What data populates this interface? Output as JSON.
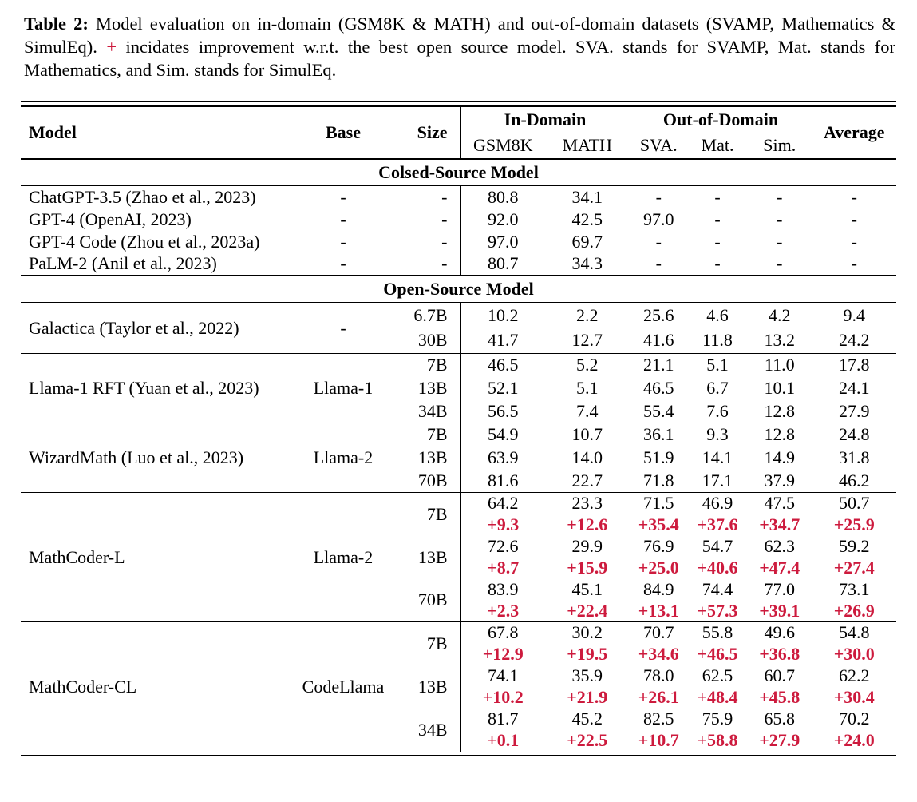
{
  "caption": {
    "label": "Table 2:",
    "body_1": " Model evaluation on in-domain (GSM8K & MATH) and out-of-domain datasets (SVAMP, Mathematics & SimulEq). ",
    "plus": "+",
    "body_2": " incidates improvement w.r.t. the best open source model. SVA. stands for SVAMP, Mat. stands for Mathematics, and Sim. stands for SimulEq."
  },
  "colors": {
    "improvement": "#cd1a3d",
    "text": "#000000",
    "background": "#ffffff"
  },
  "table": {
    "header": {
      "model": "Model",
      "base": "Base",
      "size": "Size",
      "in_domain": "In-Domain",
      "out_of_domain": "Out-of-Domain",
      "average": "Average",
      "sub_columns": [
        "GSM8K",
        "MATH",
        "SVA.",
        "Mat.",
        "Sim."
      ]
    },
    "sections": [
      {
        "title": "Colsed-Source Model",
        "blocks": [
          {
            "rows": [
              {
                "model": "ChatGPT-3.5 (Zhao et al., 2023)",
                "base": "-",
                "size": "-",
                "values": [
                  "80.8",
                  "34.1",
                  "-",
                  "-",
                  "-",
                  "-"
                ]
              },
              {
                "model": "GPT-4 (OpenAI, 2023)",
                "base": "-",
                "size": "-",
                "values": [
                  "92.0",
                  "42.5",
                  "97.0",
                  "-",
                  "-",
                  "-"
                ]
              },
              {
                "model": "GPT-4 Code (Zhou et al., 2023a)",
                "base": "-",
                "size": "-",
                "values": [
                  "97.0",
                  "69.7",
                  "-",
                  "-",
                  "-",
                  "-"
                ]
              },
              {
                "model": "PaLM-2 (Anil et al., 2023)",
                "base": "-",
                "size": "-",
                "values": [
                  "80.7",
                  "34.3",
                  "-",
                  "-",
                  "-",
                  "-"
                ]
              }
            ]
          }
        ]
      },
      {
        "title": "Open-Source Model",
        "blocks": [
          {
            "model": "Galactica (Taylor et al., 2022)",
            "base": "-",
            "rows": [
              {
                "size": "6.7B",
                "values": [
                  "10.2",
                  "2.2",
                  "25.6",
                  "4.6",
                  "4.2",
                  "9.4"
                ]
              },
              {
                "size": "30B",
                "values": [
                  "41.7",
                  "12.7",
                  "41.6",
                  "11.8",
                  "13.2",
                  "24.2"
                ]
              }
            ]
          },
          {
            "model": "Llama-1 RFT (Yuan et al., 2023)",
            "base": "Llama-1",
            "rows": [
              {
                "size": "7B",
                "values": [
                  "46.5",
                  "5.2",
                  "21.1",
                  "5.1",
                  "11.0",
                  "17.8"
                ]
              },
              {
                "size": "13B",
                "values": [
                  "52.1",
                  "5.1",
                  "46.5",
                  "6.7",
                  "10.1",
                  "24.1"
                ]
              },
              {
                "size": "34B",
                "values": [
                  "56.5",
                  "7.4",
                  "55.4",
                  "7.6",
                  "12.8",
                  "27.9"
                ]
              }
            ]
          },
          {
            "model": "WizardMath (Luo et al., 2023)",
            "base": "Llama-2",
            "rows": [
              {
                "size": "7B",
                "values": [
                  "54.9",
                  "10.7",
                  "36.1",
                  "9.3",
                  "12.8",
                  "24.8"
                ]
              },
              {
                "size": "13B",
                "values": [
                  "63.9",
                  "14.0",
                  "51.9",
                  "14.1",
                  "14.9",
                  "31.8"
                ]
              },
              {
                "size": "70B",
                "values": [
                  "81.6",
                  "22.7",
                  "71.8",
                  "17.1",
                  "37.9",
                  "46.2"
                ]
              }
            ]
          },
          {
            "model": "MathCoder-L",
            "base": "Llama-2",
            "rows": [
              {
                "size": "7B",
                "values": [
                  "64.2",
                  "23.3",
                  "71.5",
                  "46.9",
                  "47.5",
                  "50.7"
                ],
                "deltas": [
                  "+9.3",
                  "+12.6",
                  "+35.4",
                  "+37.6",
                  "+34.7",
                  "+25.9"
                ]
              },
              {
                "size": "13B",
                "values": [
                  "72.6",
                  "29.9",
                  "76.9",
                  "54.7",
                  "62.3",
                  "59.2"
                ],
                "deltas": [
                  "+8.7",
                  "+15.9",
                  "+25.0",
                  "+40.6",
                  "+47.4",
                  "+27.4"
                ]
              },
              {
                "size": "70B",
                "values": [
                  "83.9",
                  "45.1",
                  "84.9",
                  "74.4",
                  "77.0",
                  "73.1"
                ],
                "deltas": [
                  "+2.3",
                  "+22.4",
                  "+13.1",
                  "+57.3",
                  "+39.1",
                  "+26.9"
                ]
              }
            ]
          },
          {
            "model": "MathCoder-CL",
            "base": "CodeLlama",
            "rows": [
              {
                "size": "7B",
                "values": [
                  "67.8",
                  "30.2",
                  "70.7",
                  "55.8",
                  "49.6",
                  "54.8"
                ],
                "deltas": [
                  "+12.9",
                  "+19.5",
                  "+34.6",
                  "+46.5",
                  "+36.8",
                  "+30.0"
                ]
              },
              {
                "size": "13B",
                "values": [
                  "74.1",
                  "35.9",
                  "78.0",
                  "62.5",
                  "60.7",
                  "62.2"
                ],
                "deltas": [
                  "+10.2",
                  "+21.9",
                  "+26.1",
                  "+48.4",
                  "+45.8",
                  "+30.4"
                ]
              },
              {
                "size": "34B",
                "values": [
                  "81.7",
                  "45.2",
                  "82.5",
                  "75.9",
                  "65.8",
                  "70.2"
                ],
                "deltas": [
                  "+0.1",
                  "+22.5",
                  "+10.7",
                  "+58.8",
                  "+27.9",
                  "+24.0"
                ]
              }
            ]
          }
        ]
      }
    ]
  }
}
